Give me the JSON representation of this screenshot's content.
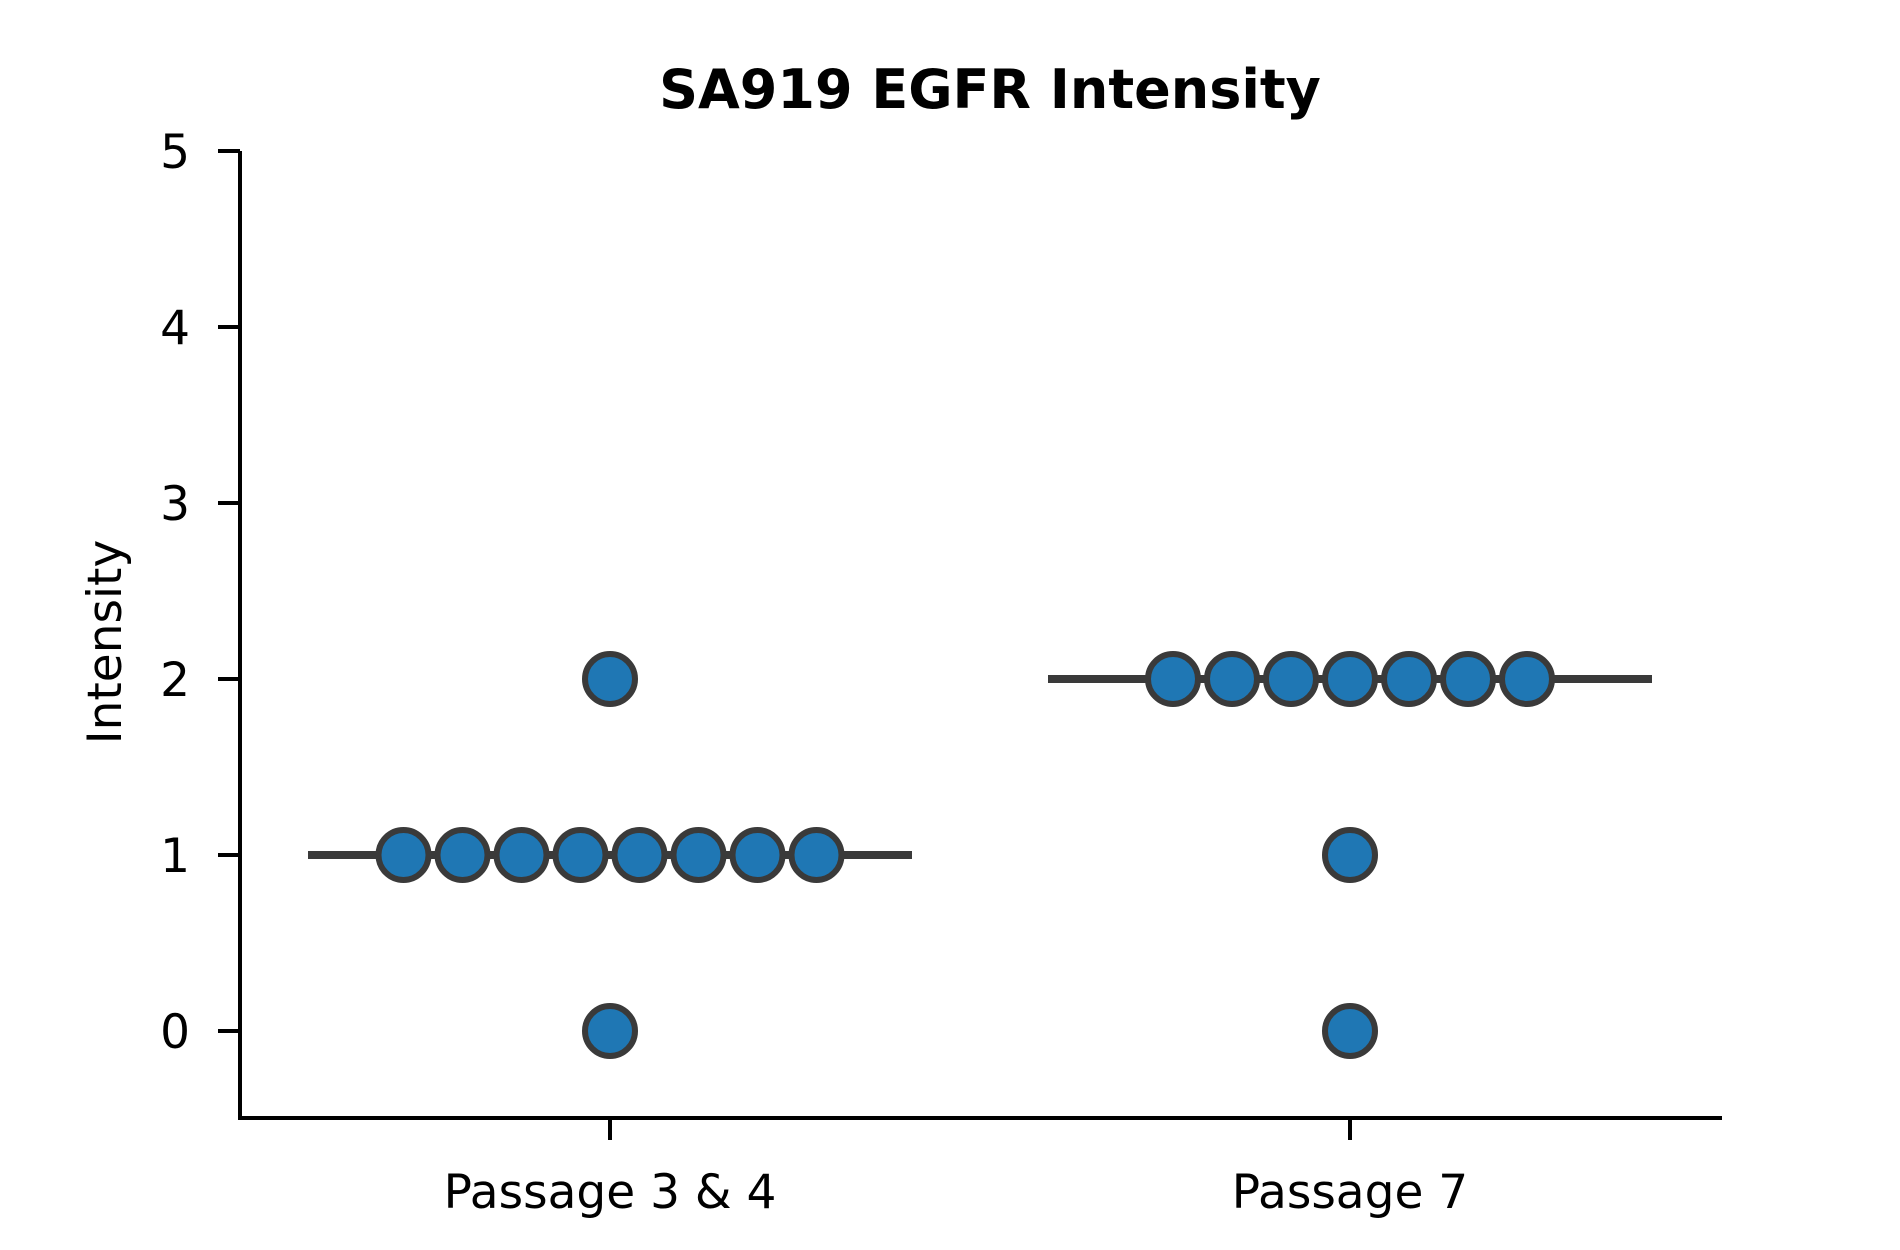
{
  "chart_data": {
    "type": "scatter",
    "subtype": "swarm-with-median",
    "title": "SA919 EGFR Intensity",
    "xlabel": "",
    "ylabel": "Intensity",
    "categories": [
      "Passage 3 & 4",
      "Passage 7"
    ],
    "ylim": [
      -0.5,
      5
    ],
    "yticks": [
      "0",
      "1",
      "2",
      "3",
      "4",
      "5"
    ],
    "grid": false,
    "legend": "none",
    "colors": {
      "marker_fill": "#1f77b4",
      "marker_edge": "#3a3a3a",
      "median_line": "#3a3a3a",
      "axis": "#000000"
    },
    "series": [
      {
        "category": "Passage 3 & 4",
        "values": [
          2,
          1,
          1,
          1,
          1,
          1,
          1,
          1,
          1,
          0
        ],
        "median": 1
      },
      {
        "category": "Passage 7",
        "values": [
          2,
          2,
          2,
          2,
          2,
          2,
          2,
          1,
          0
        ],
        "median": 2
      }
    ]
  }
}
